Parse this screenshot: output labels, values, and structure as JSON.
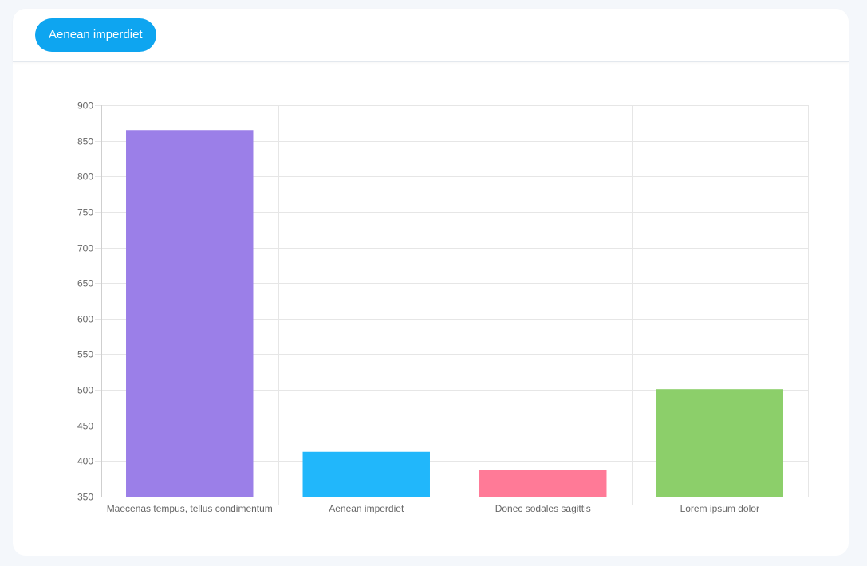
{
  "header": {
    "tab_label": "Aenean imperdiet"
  },
  "colors": {
    "accent": "#0ea5f0",
    "bars": [
      "#9b7fe8",
      "#21b7fb",
      "#ff7a97",
      "#8ccf6a"
    ]
  },
  "chart_data": {
    "type": "bar",
    "title": "",
    "xlabel": "",
    "ylabel": "",
    "categories": [
      "Maecenas tempus, tellus condimentum",
      "Aenean imperdiet",
      "Donec sodales sagittis",
      "Lorem ipsum dolor"
    ],
    "values": [
      865,
      413,
      387,
      501
    ],
    "ylim": [
      350,
      900
    ],
    "yticks": [
      900,
      850,
      800,
      750,
      700,
      650,
      600,
      550,
      500,
      450,
      400,
      350
    ],
    "grid": true,
    "legend": "none"
  }
}
